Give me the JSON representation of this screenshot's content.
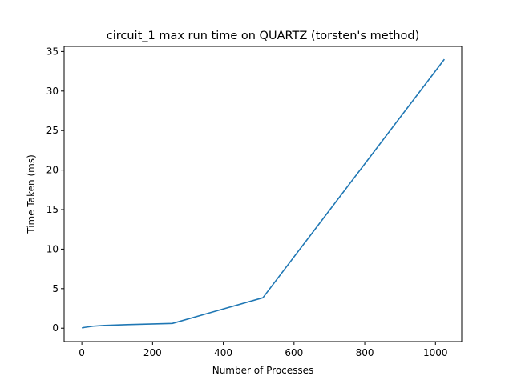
{
  "chart_data": {
    "type": "line",
    "title": "circuit_1 max run time on QUARTZ (torsten's method)",
    "xlabel": "Number of Processes",
    "ylabel": "Time Taken (ms)",
    "xlim": [
      -50.15,
      1074.15
    ],
    "ylim": [
      -1.6975,
      35.6475
    ],
    "xticks": [
      0,
      200,
      400,
      600,
      800,
      1000
    ],
    "yticks": [
      0,
      5,
      10,
      15,
      20,
      25,
      30,
      35
    ],
    "grid": false,
    "series": [
      {
        "color": "#1f77b4",
        "x": [
          2,
          4,
          8,
          16,
          32,
          64,
          128,
          256,
          512,
          1024
        ],
        "y": [
          0.05,
          0.07,
          0.1,
          0.15,
          0.25,
          0.35,
          0.45,
          0.6,
          3.85,
          33.95
        ]
      }
    ]
  }
}
